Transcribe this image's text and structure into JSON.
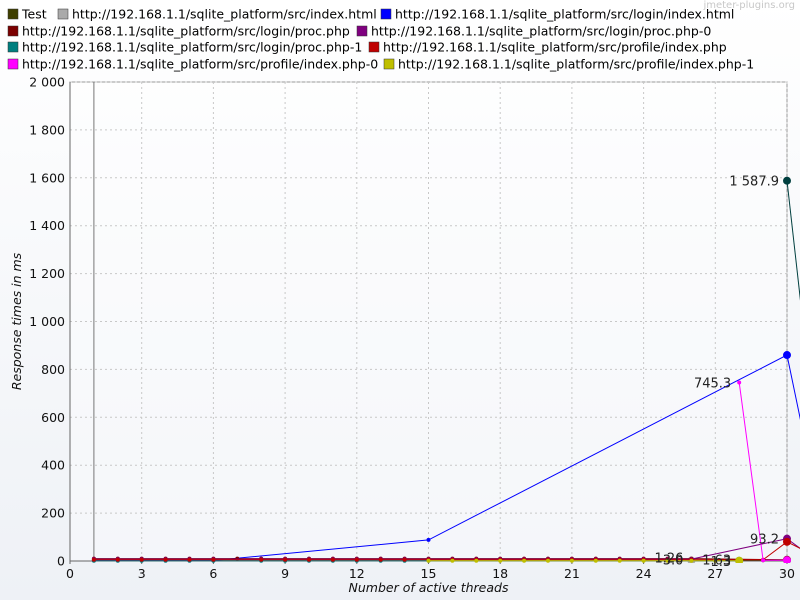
{
  "watermark": "jmeter-plugins.org",
  "chart_data": {
    "type": "line",
    "xlabel": "Number of active threads",
    "ylabel": "Response times in ms",
    "xlim": [
      0,
      30
    ],
    "ylim": [
      0,
      2000
    ],
    "x_ticks": [
      0,
      3,
      6,
      9,
      12,
      15,
      18,
      21,
      24,
      27,
      30
    ],
    "x_tick_labels": [
      "0",
      "3",
      "6",
      "9",
      "12",
      "15",
      "18",
      "21",
      "24",
      "27",
      "30"
    ],
    "y_ticks": [
      0,
      200,
      400,
      600,
      800,
      1000,
      1200,
      1400,
      1600,
      1800,
      2000
    ],
    "y_tick_labels": [
      "0",
      "200",
      "400",
      "600",
      "800",
      "1 000",
      "1 200",
      "1 400",
      "1 600",
      "1 800",
      "2 000"
    ],
    "grid": true,
    "legend_position": "top",
    "series": [
      {
        "name": "Test",
        "color": "#3f3f00",
        "points": [
          [
            1,
            3
          ],
          [
            2,
            3
          ],
          [
            3,
            3
          ],
          [
            4,
            3
          ],
          [
            5,
            3
          ],
          [
            6,
            3
          ],
          [
            8,
            3
          ],
          [
            9,
            3
          ],
          [
            10,
            3
          ],
          [
            11,
            3
          ],
          [
            12,
            3
          ],
          [
            13,
            3
          ],
          [
            14,
            3
          ],
          [
            15,
            3
          ],
          [
            16,
            3
          ],
          [
            17,
            3
          ],
          [
            18,
            3
          ],
          [
            19,
            3
          ],
          [
            20,
            3
          ],
          [
            21,
            3
          ],
          [
            22,
            3
          ],
          [
            23,
            3
          ],
          [
            24,
            3
          ],
          [
            25,
            3
          ],
          [
            26,
            3
          ],
          [
            28,
            3
          ],
          [
            29,
            3
          ],
          [
            30,
            3
          ]
        ]
      },
      {
        "name": "http://192.168.1.1/sqlite_platform/src/index.html",
        "color": "#aaaaaa",
        "points": [
          [
            1,
            2
          ],
          [
            2,
            2
          ],
          [
            3,
            2
          ],
          [
            4,
            2
          ],
          [
            5,
            2
          ],
          [
            6,
            2
          ],
          [
            8,
            2
          ],
          [
            9,
            2
          ],
          [
            10,
            2
          ],
          [
            11,
            2
          ],
          [
            12,
            2
          ],
          [
            13,
            2
          ],
          [
            14,
            2
          ],
          [
            15,
            2
          ],
          [
            16,
            2
          ],
          [
            17,
            2
          ],
          [
            18,
            2
          ],
          [
            19,
            2
          ],
          [
            20,
            2
          ],
          [
            21,
            2
          ],
          [
            22,
            2
          ],
          [
            23,
            2
          ],
          [
            24,
            2
          ],
          [
            25,
            2
          ],
          [
            26,
            2
          ]
        ]
      },
      {
        "name": "http://192.168.1.1/sqlite_platform/src/login/index.html",
        "color": "#0000ff",
        "points": [
          [
            1,
            2
          ],
          [
            2,
            2
          ],
          [
            3,
            2
          ],
          [
            4,
            2
          ],
          [
            5,
            2
          ],
          [
            6,
            2
          ],
          [
            15,
            88
          ],
          [
            30,
            860
          ],
          [
            31,
            380
          ]
        ]
      },
      {
        "name": "http://192.168.1.1/sqlite_platform/src/login/proc.php",
        "color": "#7b0000",
        "points": [
          [
            1,
            10
          ],
          [
            2,
            10
          ],
          [
            3,
            10
          ],
          [
            4,
            10
          ],
          [
            5,
            10
          ],
          [
            6,
            10
          ],
          [
            7,
            10
          ],
          [
            8,
            10
          ],
          [
            9,
            10
          ],
          [
            10,
            10
          ],
          [
            11,
            10
          ],
          [
            12,
            10
          ],
          [
            13,
            10
          ],
          [
            14,
            10
          ],
          [
            15,
            10
          ],
          [
            16,
            10
          ],
          [
            17,
            10
          ],
          [
            18,
            10
          ],
          [
            19,
            10
          ],
          [
            20,
            10
          ],
          [
            21,
            10
          ],
          [
            22,
            10
          ],
          [
            23,
            10
          ],
          [
            24,
            10
          ],
          [
            25,
            10
          ],
          [
            26,
            10
          ],
          [
            30,
            5
          ]
        ]
      },
      {
        "name": "http://192.168.1.1/sqlite_platform/src/login/proc.php-0",
        "color": "#7f007f",
        "points": [
          [
            1,
            8
          ],
          [
            2,
            8
          ],
          [
            3,
            8
          ],
          [
            4,
            8
          ],
          [
            5,
            8
          ],
          [
            6,
            8
          ],
          [
            8,
            8
          ],
          [
            9,
            8
          ],
          [
            10,
            8
          ],
          [
            11,
            8
          ],
          [
            12,
            8
          ],
          [
            13,
            8
          ],
          [
            14,
            8
          ],
          [
            15,
            8
          ],
          [
            16,
            8
          ],
          [
            17,
            8
          ],
          [
            18,
            8
          ],
          [
            19,
            8
          ],
          [
            20,
            8
          ],
          [
            21,
            8
          ],
          [
            22,
            8
          ],
          [
            23,
            8
          ],
          [
            24,
            8
          ],
          [
            25,
            8
          ],
          [
            26,
            8
          ],
          [
            30,
            93.2
          ],
          [
            31,
            20
          ]
        ]
      },
      {
        "name": "http://192.168.1.1/sqlite_platform/src/login/proc.php-1",
        "color": "#007f7f",
        "points": [
          [
            1,
            1
          ],
          [
            2,
            1
          ],
          [
            3,
            1
          ],
          [
            4,
            1
          ],
          [
            5,
            1
          ],
          [
            6,
            1
          ],
          [
            8,
            1
          ],
          [
            9,
            1
          ],
          [
            10,
            1
          ],
          [
            11,
            1
          ],
          [
            12,
            1
          ],
          [
            13,
            1
          ],
          [
            14,
            1
          ],
          [
            15,
            1
          ],
          [
            28,
            1.3
          ]
        ]
      },
      {
        "name": "http://192.168.1.1/sqlite_platform/src/profile/index.php",
        "color": "#bf0000",
        "points": [
          [
            1,
            5
          ],
          [
            2,
            5
          ],
          [
            3,
            5
          ],
          [
            4,
            5
          ],
          [
            5,
            5
          ],
          [
            6,
            5
          ],
          [
            8,
            5
          ],
          [
            9,
            5
          ],
          [
            10,
            5
          ],
          [
            11,
            5
          ],
          [
            12,
            5
          ],
          [
            13,
            5
          ],
          [
            14,
            5
          ],
          [
            15,
            5
          ],
          [
            16,
            5
          ],
          [
            17,
            5
          ],
          [
            18,
            5
          ],
          [
            19,
            5
          ],
          [
            20,
            5
          ],
          [
            21,
            5
          ],
          [
            22,
            5
          ],
          [
            23,
            5
          ],
          [
            24,
            5
          ],
          [
            25,
            5
          ],
          [
            26,
            5
          ],
          [
            28,
            5
          ],
          [
            29,
            5
          ],
          [
            30,
            80
          ],
          [
            31,
            30
          ]
        ]
      },
      {
        "name": "http://192.168.1.1/sqlite_platform/src/profile/index.php-0",
        "color": "#ff00ff",
        "points": [
          [
            28,
            745.3
          ],
          [
            29,
            3
          ],
          [
            30,
            3
          ]
        ]
      },
      {
        "name": "http://192.168.1.1/sqlite_platform/src/profile/index.php-1",
        "color": "#bfbf00",
        "points": [
          [
            15,
            1
          ],
          [
            16,
            1
          ],
          [
            17,
            1
          ],
          [
            18,
            1
          ],
          [
            19,
            1
          ],
          [
            20,
            1
          ],
          [
            21,
            1
          ],
          [
            22,
            1
          ],
          [
            23,
            1
          ],
          [
            24,
            1
          ],
          [
            25,
            1
          ],
          [
            26,
            1
          ],
          [
            27,
            1
          ],
          [
            28,
            1
          ]
        ]
      },
      {
        "name": "",
        "color": "#003f3f",
        "points": [
          [
            30,
            1587.9
          ],
          [
            31,
            700
          ]
        ]
      }
    ],
    "annotations": [
      {
        "text": "1 587.9",
        "x": 30,
        "y": 1587.9,
        "color": "#003f3f"
      },
      {
        "text": "745.3",
        "x": 28,
        "y": 745.3,
        "color": "#ff00ff"
      },
      {
        "text": "93.2",
        "x": 30,
        "y": 93.2,
        "color": "#0000cc"
      },
      {
        "text": "1.26",
        "x": 26,
        "y": 14,
        "color": "#333333"
      },
      {
        "text": "3.0",
        "x": 26,
        "y": 6,
        "color": "#aaaaaa"
      },
      {
        "text": "1.63",
        "x": 28,
        "y": 6,
        "color": "#bfbf00"
      },
      {
        "text": "1.3",
        "x": 28,
        "y": 1,
        "color": "#007f7f"
      }
    ]
  }
}
